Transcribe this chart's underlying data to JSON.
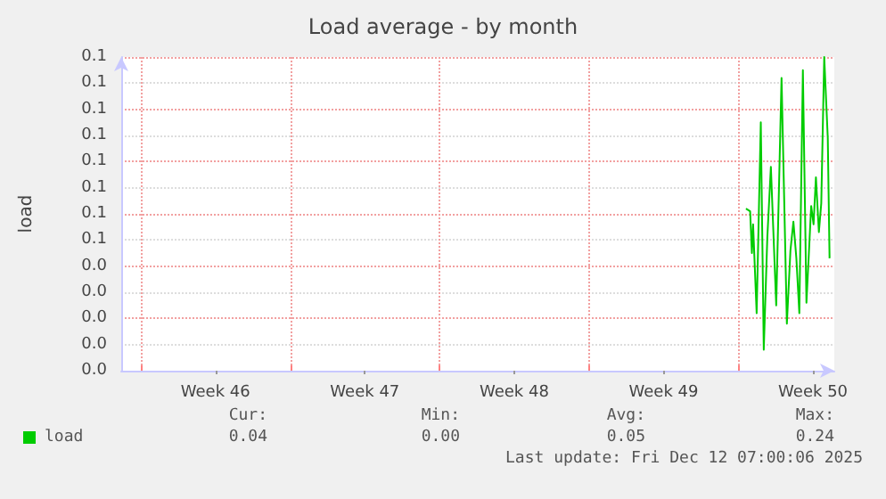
{
  "chart_data": {
    "type": "line",
    "title": "Load average - by month",
    "ylabel": "load",
    "x": [
      "2025-12-08T08:40",
      "2025-12-08T13:20",
      "2025-12-08T15:20",
      "2025-12-08T16:40",
      "2025-12-08T20:40",
      "2025-12-09T01:20",
      "2025-12-09T04:40",
      "2025-12-09T08:40",
      "2025-12-09T12:40",
      "2025-12-09T18:40",
      "2025-12-10T00:40",
      "2025-12-10T06:40",
      "2025-12-10T10:40",
      "2025-12-10T14:00",
      "2025-12-10T17:20",
      "2025-12-10T20:40",
      "2025-12-11T00:40",
      "2025-12-11T04:40",
      "2025-12-11T10:00",
      "2025-12-11T12:40",
      "2025-12-11T15:20",
      "2025-12-11T18:40",
      "2025-12-11T21:20",
      "2025-12-12T00:40",
      "2025-12-12T04:40",
      "2025-12-12T06:40"
    ],
    "series": [
      {
        "name": "load",
        "color": "#00cc00",
        "values": [
          0.062,
          0.061,
          0.045,
          0.056,
          0.022,
          0.095,
          0.008,
          0.051,
          0.078,
          0.025,
          0.112,
          0.018,
          0.046,
          0.057,
          0.043,
          0.022,
          0.115,
          0.026,
          0.063,
          0.056,
          0.074,
          0.053,
          0.064,
          0.12,
          0.089,
          0.043
        ]
      }
    ],
    "xlim": [
      "2025-11-09T02:00",
      "2025-12-12T12:00"
    ],
    "xticks": [
      {
        "value": "2025-11-10T00:00",
        "label": null
      },
      {
        "value": "2025-11-13T12:00",
        "label": "Week 46"
      },
      {
        "value": "2025-11-17T00:00",
        "label": null
      },
      {
        "value": "2025-11-20T12:00",
        "label": "Week 47"
      },
      {
        "value": "2025-11-24T00:00",
        "label": null
      },
      {
        "value": "2025-11-27T12:00",
        "label": "Week 48"
      },
      {
        "value": "2025-12-01T00:00",
        "label": null
      },
      {
        "value": "2025-12-04T12:00",
        "label": "Week 49"
      },
      {
        "value": "2025-12-08T00:00",
        "label": null
      },
      {
        "value": "2025-12-11T12:00",
        "label": "Week 50"
      }
    ],
    "ylim": [
      0,
      0.12
    ],
    "yticks": [
      {
        "value": 0,
        "label": "0.0"
      },
      {
        "value": 0.01,
        "label": "0.0"
      },
      {
        "value": 0.02,
        "label": "0.0"
      },
      {
        "value": 0.03,
        "label": "0.0"
      },
      {
        "value": 0.04,
        "label": "0.0"
      },
      {
        "value": 0.05,
        "label": "0.1"
      },
      {
        "value": 0.06,
        "label": "0.1"
      },
      {
        "value": 0.07,
        "label": "0.1"
      },
      {
        "value": 0.08,
        "label": "0.1"
      },
      {
        "value": 0.09,
        "label": "0.1"
      },
      {
        "value": 0.1,
        "label": "0.1"
      },
      {
        "value": 0.11,
        "label": "0.1"
      },
      {
        "value": 0.12,
        "label": "0.1"
      }
    ],
    "grid": true,
    "legend": "bottom left",
    "marker": "none",
    "line_style": "solid",
    "annotations": [
      "Cur:",
      "Min:",
      "Avg:",
      "Max:",
      "0.04",
      "0.00",
      "0.05",
      "0.24",
      "Last update: Fri Dec 12 07:00:06 2025"
    ]
  }
}
